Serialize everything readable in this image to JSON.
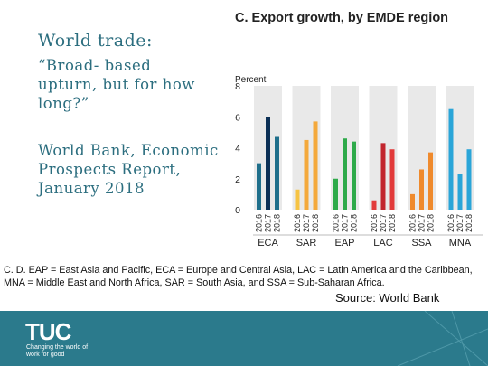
{
  "slide": {
    "heading": "World trade:",
    "subheading": "“Broad- based upturn, but for how long?”",
    "source_title": "World Bank, Economic Prospects Report, January 2018",
    "footnote": "C. D. EAP = East Asia and Pacific, ECA = Europe and Central Asia, LAC = Latin America and the Caribbean, MNA = Middle East and North Africa, SAR = South Asia, and SSA = Sub-Saharan Africa.",
    "source": "Source: World Bank"
  },
  "footer": {
    "logo": "TUC",
    "tagline": "Changing the world of work for good"
  },
  "chart_data": {
    "type": "bar",
    "title": "C. Export growth, by EMDE region",
    "ylabel": "Percent",
    "ylim": [
      0,
      8
    ],
    "yticks": [
      0,
      2,
      4,
      6,
      8
    ],
    "x_labels": [
      "2016",
      "2017",
      "2018"
    ],
    "categories": [
      "ECA",
      "SAR",
      "EAP",
      "LAC",
      "SSA",
      "MNA"
    ],
    "values": [
      [
        3.0,
        6.0,
        4.7
      ],
      [
        1.3,
        4.5,
        5.7
      ],
      [
        2.0,
        4.6,
        4.4
      ],
      [
        0.6,
        4.3,
        3.9
      ],
      [
        1.0,
        2.6,
        3.7
      ],
      [
        6.5,
        2.3,
        3.9
      ]
    ],
    "colors": [
      [
        "#1f6f8b",
        "#0b2f55",
        "#1f6f8b"
      ],
      [
        "#f6c343",
        "#f4a93c",
        "#f4a93c"
      ],
      [
        "#2eaa4a",
        "#2eaa4a",
        "#2eaa4a"
      ],
      [
        "#e23b3b",
        "#c2262e",
        "#e23b3b"
      ],
      [
        "#ef8a2d",
        "#ef8a2d",
        "#ef8a2d"
      ],
      [
        "#2aa5d8",
        "#2aa5d8",
        "#2aa5d8"
      ]
    ],
    "grid": false
  }
}
